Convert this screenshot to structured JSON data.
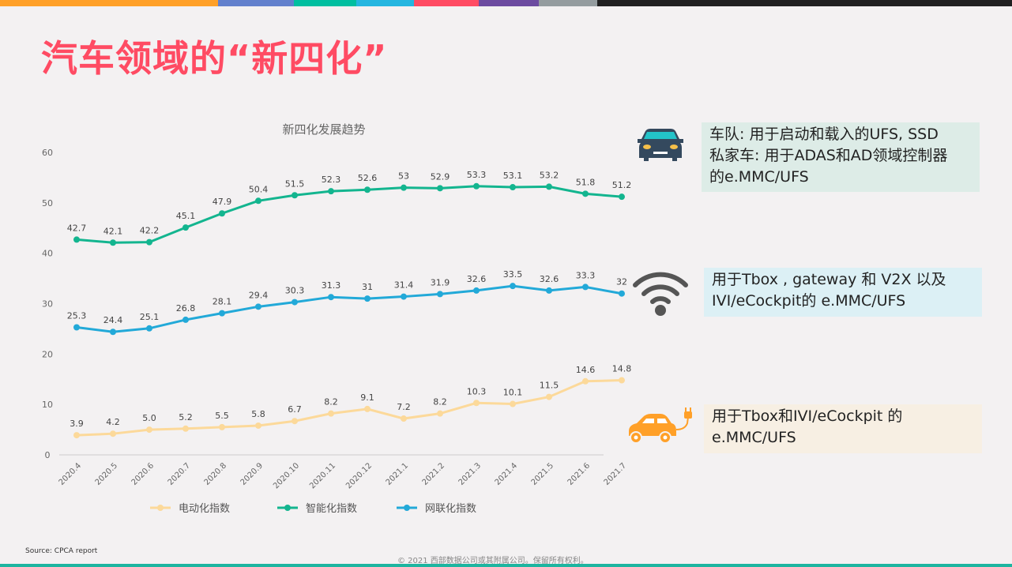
{
  "slide": {
    "title": "汽车领域的“新四化”",
    "top_bar_colors": [
      "#ffa028",
      "#6280cd",
      "#00bfa0",
      "#25b6e0",
      "#ff4b63",
      "#6c4ba0",
      "#949c9f",
      "#212121"
    ],
    "source": "Source: CPCA report",
    "copyright": "© 2021 西部数据公司或其附属公司。保留所有权利。"
  },
  "cards": [
    {
      "icon": "car-icon",
      "lines": [
        "车队: 用于启动和载入的UFS, SSD",
        "私家车: 用于ADAS和AD领域控制器",
        "的e.MMC/UFS"
      ],
      "bg": "#ddece7"
    },
    {
      "icon": "wifi-icon",
      "lines": [
        "用于Tbox , gateway 和 V2X 以及",
        "IVI/eCockpit的 e.MMC/UFS"
      ],
      "bg": "#dcf0f5"
    },
    {
      "icon": "electric-car-icon",
      "lines": [
        "用于Tbox和IVI/eCockpit 的",
        "e.MMC/UFS"
      ],
      "bg": "#f7efe3"
    }
  ],
  "chart_data": {
    "type": "line",
    "title": "新四化发展趋势",
    "xlabel": "",
    "ylabel": "",
    "ylim": [
      0,
      60
    ],
    "yticks": [
      0,
      10,
      20,
      30,
      40,
      50,
      60
    ],
    "grid": false,
    "legend": "bottom",
    "categories": [
      "2020.4",
      "2020.5",
      "2020.6",
      "2020.7",
      "2020.8",
      "2020.9",
      "2020.10",
      "2020.11",
      "2020.12",
      "2021.1",
      "2021.2",
      "2021.3",
      "2021.4",
      "2021.5",
      "2021.6",
      "2021.7"
    ],
    "series": [
      {
        "name": "电动化指数",
        "color": "#fcd99a",
        "values": [
          3.9,
          4.2,
          5.0,
          5.2,
          5.5,
          5.8,
          6.7,
          8.2,
          9.1,
          7.2,
          8.2,
          10.3,
          10.1,
          11.5,
          14.6,
          14.8
        ],
        "labels": [
          "3.9",
          "4.2",
          "5.0",
          "5.2",
          "5.5",
          "5.8",
          "6.7",
          "8.2",
          "9.1",
          "7.2",
          "8.2",
          "10.3",
          "10.1",
          "11.5",
          "14.6",
          "14.8"
        ]
      },
      {
        "name": "智能化指数",
        "color": "#13b58f",
        "values": [
          42.7,
          42.1,
          42.2,
          45.1,
          47.9,
          50.4,
          51.5,
          52.3,
          52.6,
          53,
          52.9,
          53.3,
          53.1,
          53.2,
          51.8,
          51.2
        ],
        "labels": [
          "42.7",
          "42.1",
          "42.2",
          "45.1",
          "47.9",
          "50.4",
          "51.5",
          "52.3",
          "52.6",
          "53",
          "52.9",
          "53.3",
          "53.1",
          "53.2",
          "51.8",
          "51.2"
        ]
      },
      {
        "name": "网联化指数",
        "color": "#22a9d8",
        "values": [
          25.3,
          24.4,
          25.1,
          26.8,
          28.1,
          29.4,
          30.3,
          31.3,
          31,
          31.4,
          31.9,
          32.6,
          33.5,
          32.6,
          33.3,
          32
        ],
        "labels": [
          "25.3",
          "24.4",
          "25.1",
          "26.8",
          "28.1",
          "29.4",
          "30.3",
          "31.3",
          "31",
          "31.4",
          "31.9",
          "32.6",
          "33.5",
          "32.6",
          "33.3",
          "32"
        ]
      }
    ]
  }
}
